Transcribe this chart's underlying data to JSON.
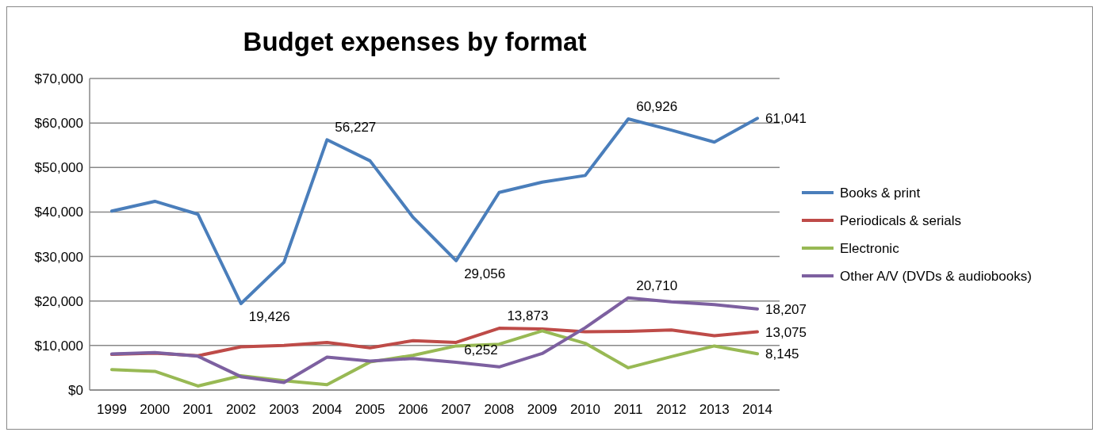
{
  "chart_data": {
    "type": "line",
    "title": "Budget expenses by format",
    "categories": [
      "1999",
      "2000",
      "2001",
      "2002",
      "2003",
      "2004",
      "2005",
      "2006",
      "2007",
      "2008",
      "2009",
      "2010",
      "2011",
      "2012",
      "2013",
      "2014"
    ],
    "series": [
      {
        "name": "Books & print",
        "color": "#4a7ebb",
        "values": [
          40200,
          42400,
          39500,
          19426,
          28700,
          56227,
          51500,
          38800,
          29056,
          44400,
          46700,
          48200,
          60926,
          58400,
          55700,
          61041
        ],
        "value_labels": [
          null,
          null,
          null,
          "19,426",
          null,
          "56,227",
          null,
          null,
          "29,056",
          null,
          null,
          null,
          "60,926",
          null,
          null,
          "61,041"
        ]
      },
      {
        "name": "Periodicals & serials",
        "color": "#be4b48",
        "values": [
          8000,
          8300,
          7700,
          9700,
          10000,
          10700,
          9500,
          11100,
          10700,
          13873,
          13700,
          13100,
          13200,
          13500,
          12200,
          13075
        ],
        "value_labels": [
          null,
          null,
          null,
          null,
          null,
          null,
          null,
          null,
          null,
          "13,873",
          null,
          null,
          null,
          null,
          null,
          "13,075"
        ]
      },
      {
        "name": "Electronic",
        "color": "#98b954",
        "values": [
          4600,
          4200,
          900,
          3200,
          2100,
          1200,
          6300,
          7800,
          9900,
          10300,
          13300,
          10500,
          5000,
          7500,
          9900,
          8145
        ],
        "value_labels": [
          null,
          null,
          null,
          null,
          null,
          null,
          null,
          null,
          null,
          null,
          null,
          null,
          null,
          null,
          null,
          "8,145"
        ]
      },
      {
        "name": "Other A/V (DVDs & audiobooks)",
        "color": "#7d60a0",
        "values": [
          8100,
          8400,
          7600,
          3000,
          1700,
          7400,
          6500,
          7100,
          6252,
          5200,
          8200,
          14000,
          20710,
          19800,
          19200,
          18207
        ],
        "value_labels": [
          null,
          null,
          null,
          null,
          null,
          null,
          null,
          null,
          "6,252",
          null,
          null,
          null,
          "20,710",
          null,
          null,
          "18,207"
        ]
      }
    ],
    "ylim": [
      0,
      70000
    ],
    "yticks": [
      {
        "value": 0,
        "label": "$0"
      },
      {
        "value": 10000,
        "label": "$10,000"
      },
      {
        "value": 20000,
        "label": "$20,000"
      },
      {
        "value": 30000,
        "label": "$30,000"
      },
      {
        "value": 40000,
        "label": "$40,000"
      },
      {
        "value": 50000,
        "label": "$50,000"
      },
      {
        "value": 60000,
        "label": "$60,000"
      },
      {
        "value": 70000,
        "label": "$70,000"
      }
    ],
    "grid": "y",
    "legend": "right",
    "marker": "none",
    "line_style": "solid"
  }
}
